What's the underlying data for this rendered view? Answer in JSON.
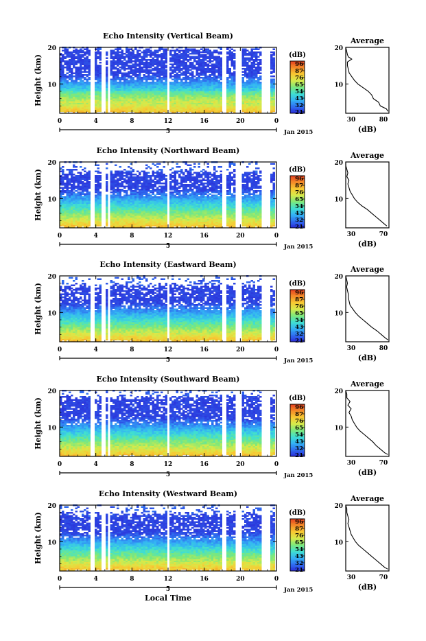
{
  "chart_data": [
    {
      "type": "heatmap",
      "title": "Echo Intensity (Vertical Beam)",
      "ylabel": "Height (km)",
      "xlim": [
        0,
        24
      ],
      "ylim": [
        2,
        20
      ],
      "x_ticks": [
        "0",
        "4",
        "8",
        "12",
        "16",
        "20",
        "0"
      ],
      "y_ticks": [
        {
          "value": 10,
          "label": "10"
        },
        {
          "value": 20,
          "label": "20"
        }
      ],
      "date_ticks": [
        "5"
      ],
      "date_label": "Jan 2015",
      "colorbar": {
        "unit": "(dB)",
        "labels": [
          "96",
          "87",
          "76",
          "65",
          "54",
          "43",
          "32",
          "21"
        ]
      },
      "average": {
        "title": "Average",
        "xlabel": "(dB)",
        "xlim": [
          30,
          80
        ],
        "xtick_labels": [
          "30",
          "80"
        ],
        "profile": [
          {
            "h": 2.5,
            "v": 79
          },
          {
            "h": 3.2,
            "v": 77
          },
          {
            "h": 4,
            "v": 70
          },
          {
            "h": 5,
            "v": 68
          },
          {
            "h": 6,
            "v": 62
          },
          {
            "h": 7,
            "v": 60
          },
          {
            "h": 8,
            "v": 56
          },
          {
            "h": 9,
            "v": 50
          },
          {
            "h": 10,
            "v": 44
          },
          {
            "h": 11,
            "v": 40
          },
          {
            "h": 12,
            "v": 37
          },
          {
            "h": 13,
            "v": 34
          },
          {
            "h": 14,
            "v": 33
          },
          {
            "h": 15,
            "v": 32
          },
          {
            "h": 16,
            "v": 32
          },
          {
            "h": 16.8,
            "v": 37
          },
          {
            "h": 17.4,
            "v": 33
          },
          {
            "h": 18,
            "v": 32
          },
          {
            "h": 19,
            "v": 31
          },
          {
            "h": 20,
            "v": 30
          }
        ]
      }
    },
    {
      "type": "heatmap",
      "title": "Echo Intensity (Northward Beam)",
      "ylabel": "Height (km)",
      "xlim": [
        0,
        24
      ],
      "ylim": [
        2,
        20
      ],
      "x_ticks": [
        "0",
        "4",
        "8",
        "12",
        "16",
        "20",
        "0"
      ],
      "y_ticks": [
        {
          "value": 10,
          "label": "10"
        },
        {
          "value": 20,
          "label": "20"
        }
      ],
      "date_ticks": [
        "5"
      ],
      "date_label": "Jan 2015",
      "colorbar": {
        "unit": "(dB)",
        "labels": [
          "96",
          "87",
          "76",
          "65",
          "54",
          "43",
          "32",
          "21"
        ]
      },
      "average": {
        "title": "Average",
        "xlabel": "(dB)",
        "xlim": [
          30,
          70
        ],
        "xtick_labels": [
          "30",
          "70"
        ],
        "profile": [
          {
            "h": 2.5,
            "v": 68
          },
          {
            "h": 3,
            "v": 66
          },
          {
            "h": 4,
            "v": 62
          },
          {
            "h": 5,
            "v": 58
          },
          {
            "h": 6,
            "v": 54
          },
          {
            "h": 7,
            "v": 50
          },
          {
            "h": 8,
            "v": 45
          },
          {
            "h": 9,
            "v": 41
          },
          {
            "h": 10,
            "v": 38
          },
          {
            "h": 11,
            "v": 36
          },
          {
            "h": 12,
            "v": 34
          },
          {
            "h": 13,
            "v": 33
          },
          {
            "h": 14,
            "v": 32
          },
          {
            "h": 15,
            "v": 33
          },
          {
            "h": 16,
            "v": 31
          },
          {
            "h": 17,
            "v": 32
          },
          {
            "h": 18,
            "v": 31
          },
          {
            "h": 19,
            "v": 30
          },
          {
            "h": 20,
            "v": 30
          }
        ]
      }
    },
    {
      "type": "heatmap",
      "title": "Echo Intensity (Eastward Beam)",
      "ylabel": "Height (km)",
      "xlim": [
        0,
        24
      ],
      "ylim": [
        2,
        20
      ],
      "x_ticks": [
        "0",
        "4",
        "8",
        "12",
        "16",
        "20",
        "0"
      ],
      "y_ticks": [
        {
          "value": 10,
          "label": "10"
        },
        {
          "value": 20,
          "label": "20"
        }
      ],
      "date_ticks": [
        "5"
      ],
      "date_label": "Jan 2015",
      "colorbar": {
        "unit": "(dB)",
        "labels": [
          "96",
          "87",
          "76",
          "65",
          "54",
          "43",
          "32",
          "21"
        ]
      },
      "average": {
        "title": "Average",
        "xlabel": "(dB)",
        "xlim": [
          30,
          80
        ],
        "xtick_labels": [
          "30",
          "80"
        ],
        "profile": [
          {
            "h": 2.5,
            "v": 79
          },
          {
            "h": 3,
            "v": 76
          },
          {
            "h": 4,
            "v": 71
          },
          {
            "h": 5,
            "v": 66
          },
          {
            "h": 6,
            "v": 60
          },
          {
            "h": 7,
            "v": 55
          },
          {
            "h": 8,
            "v": 50
          },
          {
            "h": 9,
            "v": 45
          },
          {
            "h": 10,
            "v": 41
          },
          {
            "h": 11,
            "v": 38
          },
          {
            "h": 12,
            "v": 35
          },
          {
            "h": 13,
            "v": 34
          },
          {
            "h": 14,
            "v": 33
          },
          {
            "h": 15,
            "v": 33
          },
          {
            "h": 16,
            "v": 32
          },
          {
            "h": 17,
            "v": 31
          },
          {
            "h": 18,
            "v": 32
          },
          {
            "h": 19,
            "v": 31
          },
          {
            "h": 20,
            "v": 30
          }
        ]
      }
    },
    {
      "type": "heatmap",
      "title": "Echo Intensity (Southward Beam)",
      "ylabel": "Height (km)",
      "xlim": [
        0,
        24
      ],
      "ylim": [
        2,
        20
      ],
      "x_ticks": [
        "0",
        "4",
        "8",
        "12",
        "16",
        "20",
        "0"
      ],
      "y_ticks": [
        {
          "value": 10,
          "label": "10"
        },
        {
          "value": 20,
          "label": "20"
        }
      ],
      "date_ticks": [
        "5"
      ],
      "date_label": "Jan 2015",
      "colorbar": {
        "unit": "(dB)",
        "labels": [
          "96",
          "87",
          "76",
          "65",
          "54",
          "43",
          "32",
          "21"
        ]
      },
      "average": {
        "title": "Average",
        "xlabel": "(dB)",
        "xlim": [
          30,
          70
        ],
        "xtick_labels": [
          "30",
          "70"
        ],
        "profile": [
          {
            "h": 2.5,
            "v": 69
          },
          {
            "h": 3,
            "v": 66
          },
          {
            "h": 4,
            "v": 62
          },
          {
            "h": 5,
            "v": 58
          },
          {
            "h": 6,
            "v": 55
          },
          {
            "h": 7,
            "v": 51
          },
          {
            "h": 8,
            "v": 47
          },
          {
            "h": 9,
            "v": 43
          },
          {
            "h": 10,
            "v": 40
          },
          {
            "h": 11,
            "v": 38
          },
          {
            "h": 12,
            "v": 36
          },
          {
            "h": 13,
            "v": 35
          },
          {
            "h": 14,
            "v": 33
          },
          {
            "h": 15,
            "v": 35
          },
          {
            "h": 16,
            "v": 32
          },
          {
            "h": 17,
            "v": 34
          },
          {
            "h": 18,
            "v": 31
          },
          {
            "h": 19,
            "v": 31
          },
          {
            "h": 20,
            "v": 30
          }
        ]
      }
    },
    {
      "type": "heatmap",
      "title": "Echo Intensity (Westward Beam)",
      "ylabel": "Height (km)",
      "xlim": [
        0,
        24
      ],
      "ylim": [
        2,
        20
      ],
      "x_ticks": [
        "0",
        "4",
        "8",
        "12",
        "16",
        "20",
        "0"
      ],
      "y_ticks": [
        {
          "value": 10,
          "label": "10"
        },
        {
          "value": 20,
          "label": "20"
        }
      ],
      "date_ticks": [
        "5"
      ],
      "date_label": "Jan 2015",
      "xlabel": "Local Time",
      "colorbar": {
        "unit": "(dB)",
        "labels": [
          "96",
          "87",
          "76",
          "65",
          "54",
          "43",
          "32",
          "21"
        ]
      },
      "average": {
        "title": "Average",
        "xlabel": "(dB)",
        "xlim": [
          30,
          70
        ],
        "xtick_labels": [
          "30",
          "70"
        ],
        "profile": [
          {
            "h": 2.5,
            "v": 69
          },
          {
            "h": 3,
            "v": 66
          },
          {
            "h": 4,
            "v": 62
          },
          {
            "h": 5,
            "v": 58
          },
          {
            "h": 6,
            "v": 54
          },
          {
            "h": 7,
            "v": 50
          },
          {
            "h": 8,
            "v": 46
          },
          {
            "h": 9,
            "v": 42
          },
          {
            "h": 10,
            "v": 39
          },
          {
            "h": 11,
            "v": 37
          },
          {
            "h": 12,
            "v": 35
          },
          {
            "h": 13,
            "v": 34
          },
          {
            "h": 14,
            "v": 33
          },
          {
            "h": 15,
            "v": 32
          },
          {
            "h": 16,
            "v": 33
          },
          {
            "h": 17,
            "v": 32
          },
          {
            "h": 18,
            "v": 31
          },
          {
            "h": 19,
            "v": 31
          },
          {
            "h": 20,
            "v": 30
          }
        ]
      }
    }
  ],
  "colors": {
    "colormap": [
      "#2b2bd8",
      "#2f6ff0",
      "#33b3f5",
      "#40e0d0",
      "#7de87a",
      "#d8ea4a",
      "#f8c832",
      "#f48a28",
      "#e84020"
    ],
    "data_gap": "#ffffff",
    "axis": "#000000"
  }
}
